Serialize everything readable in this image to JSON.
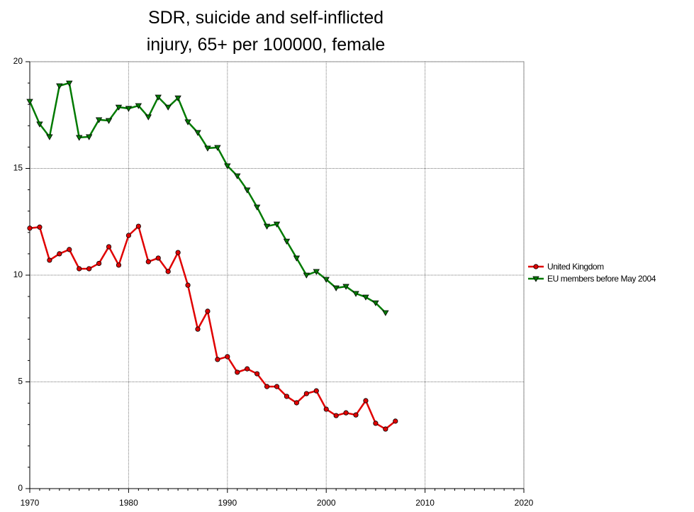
{
  "chart_data": {
    "type": "line",
    "title": [
      "SDR, suicide and self-inflicted",
      "injury, 65+ per 100000, female"
    ],
    "x": [
      1970,
      1971,
      1972,
      1973,
      1974,
      1975,
      1976,
      1977,
      1978,
      1979,
      1980,
      1981,
      1982,
      1983,
      1984,
      1985,
      1986,
      1987,
      1988,
      1989,
      1990,
      1991,
      1992,
      1993,
      1994,
      1995,
      1996,
      1997,
      1998,
      1999,
      2000,
      2001,
      2002,
      2003,
      2004,
      2005,
      2006,
      2007
    ],
    "series": [
      {
        "name": "United Kingdom",
        "color": "#e00000",
        "marker": "circle",
        "values": [
          12.2,
          12.25,
          10.7,
          11.0,
          11.2,
          10.3,
          10.3,
          10.55,
          11.33,
          10.47,
          11.86,
          12.29,
          10.63,
          10.8,
          10.17,
          11.06,
          9.53,
          7.47,
          8.31,
          6.05,
          6.18,
          5.45,
          5.61,
          5.38,
          4.78,
          4.78,
          4.32,
          4.02,
          4.45,
          4.58,
          3.72,
          3.42,
          3.55,
          3.45,
          4.12,
          3.06,
          2.79,
          3.16
        ]
      },
      {
        "name": "EU members before May 2004",
        "color": "#007a00",
        "marker": "triangle-down",
        "values": [
          18.14,
          17.08,
          16.48,
          18.87,
          19.0,
          16.45,
          16.48,
          17.28,
          17.24,
          17.87,
          17.81,
          17.94,
          17.41,
          18.34,
          17.87,
          18.3,
          17.18,
          16.68,
          15.95,
          15.98,
          15.12,
          14.65,
          13.99,
          13.19,
          12.29,
          12.39,
          11.59,
          10.8,
          10.0,
          10.17,
          9.8,
          9.4,
          9.47,
          9.14,
          8.97,
          8.7,
          8.24,
          null
        ]
      }
    ],
    "xlim": [
      1970,
      2020
    ],
    "xticks": [
      1970,
      1980,
      1990,
      2000,
      2010,
      2020
    ],
    "ylim": [
      0,
      20
    ],
    "yticks": [
      0,
      5,
      10,
      15,
      20
    ],
    "grid": true,
    "legend": "right"
  }
}
